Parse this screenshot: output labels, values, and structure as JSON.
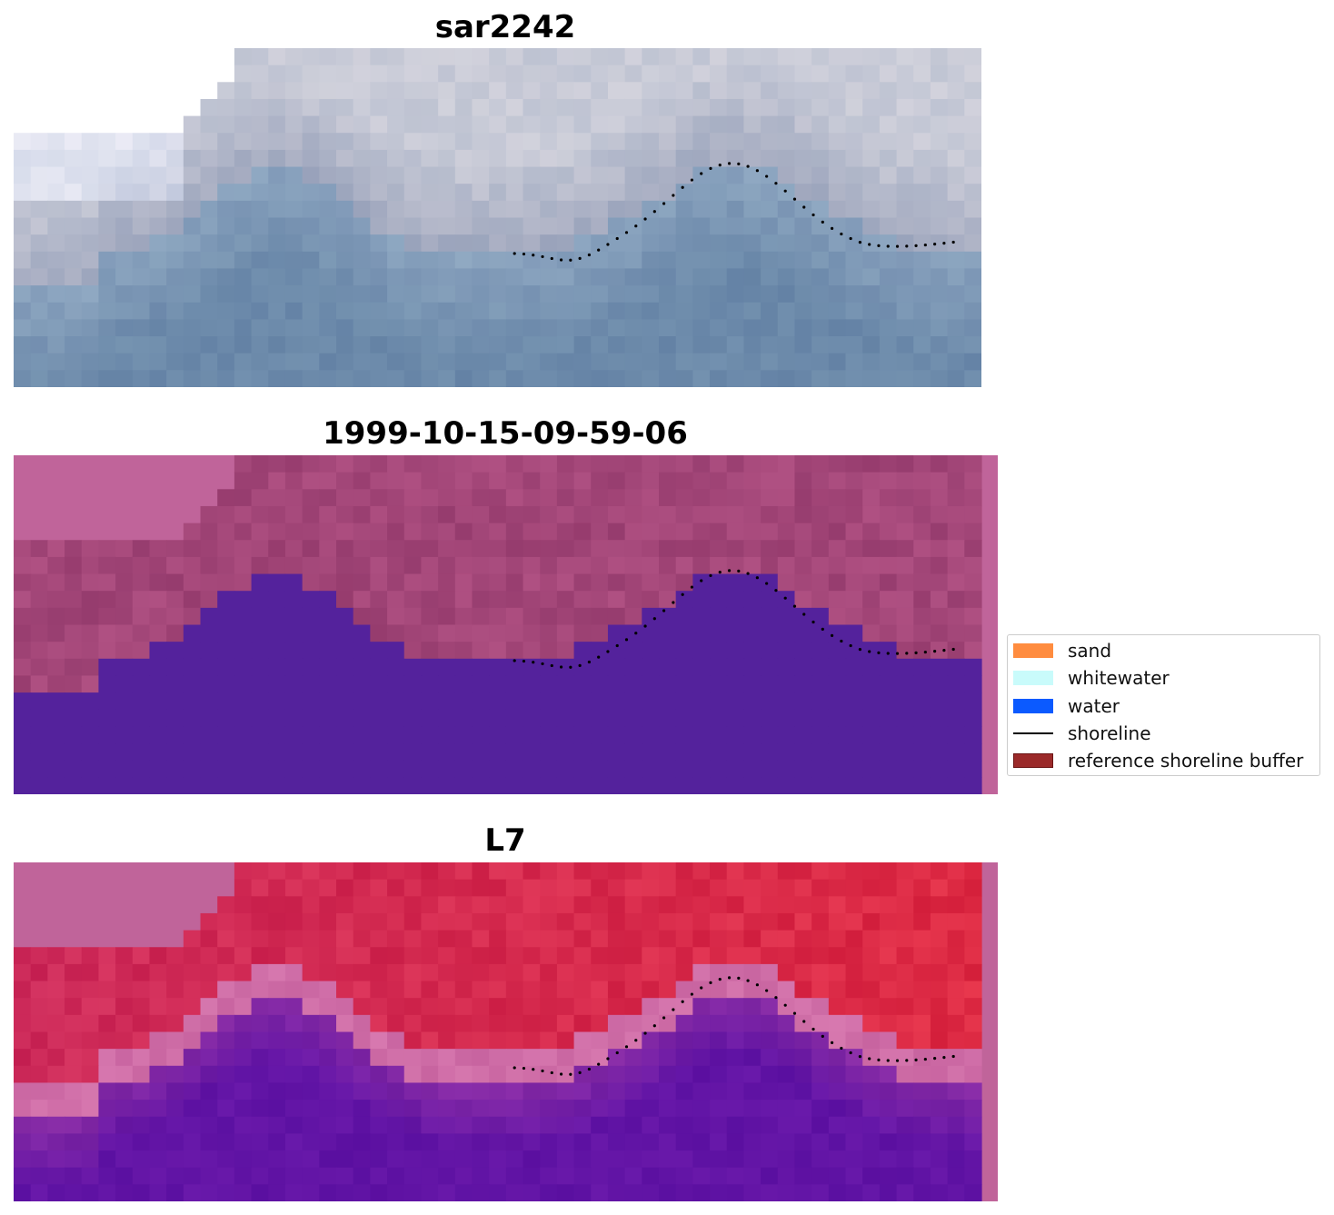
{
  "panels": [
    {
      "title": "sar2242",
      "style": "rgb",
      "buffer_strip": false
    },
    {
      "title": "1999-10-15-09-59-06",
      "style": "classified",
      "buffer_strip": true
    },
    {
      "title": "L7",
      "style": "index",
      "buffer_strip": true
    }
  ],
  "legend": {
    "items": [
      {
        "label": "sand",
        "color": "#ff8c3f",
        "kind": "patch"
      },
      {
        "label": "whitewater",
        "color": "#c9fbfb",
        "kind": "patch"
      },
      {
        "label": "water",
        "color": "#0b5aff",
        "kind": "patch"
      },
      {
        "label": "shoreline",
        "color": "#000000",
        "kind": "line"
      },
      {
        "label": "reference shoreline buffer",
        "color": "#9b2a2a",
        "kind": "patch"
      }
    ]
  },
  "colors": {
    "water_class": "#54229c",
    "buffer_pink": "#c0649a",
    "shoreline_dots": "#000000"
  }
}
